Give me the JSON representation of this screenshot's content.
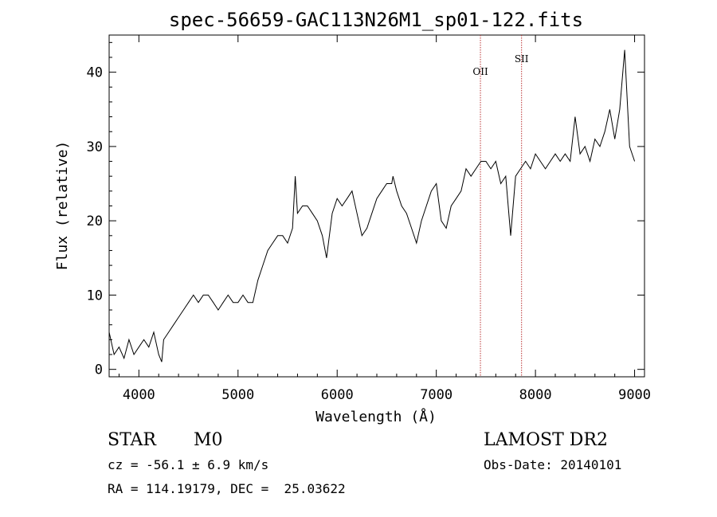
{
  "chart_data": {
    "type": "line",
    "title": "spec-56659-GAC113N26M1_sp01-122.fits",
    "xlabel": "Wavelength (Å)",
    "ylabel": "Flux (relative)",
    "xlim": [
      3700,
      9100
    ],
    "ylim": [
      -1,
      45
    ],
    "xticks": [
      "4000",
      "5000",
      "6000",
      "7000",
      "8000",
      "9000"
    ],
    "yticks": [
      "0",
      "10",
      "20",
      "30",
      "40"
    ],
    "grid": false,
    "series": [
      {
        "x": [
          3700,
          3750,
          3800,
          3850,
          3900,
          3950,
          4000,
          4050,
          4100,
          4150,
          4200,
          4230,
          4250,
          4300,
          4350,
          4400,
          4450,
          4500,
          4550,
          4600,
          4650,
          4700,
          4750,
          4800,
          4850,
          4900,
          4950,
          5000,
          5050,
          5100,
          5150,
          5200,
          5250,
          5300,
          5350,
          5400,
          5450,
          5500,
          5550,
          5577,
          5600,
          5650,
          5700,
          5750,
          5800,
          5850,
          5893,
          5950,
          6000,
          6050,
          6100,
          6150,
          6200,
          6250,
          6300,
          6350,
          6400,
          6450,
          6500,
          6550,
          6563,
          6600,
          6650,
          6700,
          6750,
          6800,
          6850,
          6900,
          6950,
          7000,
          7050,
          7100,
          7150,
          7200,
          7250,
          7300,
          7350,
          7400,
          7450,
          7500,
          7550,
          7600,
          7650,
          7700,
          7750,
          7800,
          7850,
          7900,
          7950,
          8000,
          8050,
          8100,
          8150,
          8200,
          8250,
          8300,
          8350,
          8400,
          8450,
          8500,
          8550,
          8600,
          8650,
          8700,
          8750,
          8800,
          8850,
          8900,
          8950,
          9000
        ],
        "values": [
          5,
          2,
          3,
          1.5,
          4,
          2,
          3,
          4,
          3,
          5,
          2,
          1,
          4,
          5,
          6,
          7,
          8,
          9,
          10,
          9,
          10,
          10,
          9,
          8,
          9,
          10,
          9,
          9,
          10,
          9,
          9,
          12,
          14,
          16,
          17,
          18,
          18,
          17,
          19,
          26,
          21,
          22,
          22,
          21,
          20,
          18,
          15,
          21,
          23,
          22,
          23,
          24,
          21,
          18,
          19,
          21,
          23,
          24,
          25,
          25,
          26,
          24,
          22,
          21,
          19,
          17,
          20,
          22,
          24,
          25,
          20,
          19,
          22,
          23,
          24,
          27,
          26,
          27,
          28,
          28,
          27,
          28,
          25,
          26,
          18,
          26,
          27,
          28,
          27,
          29,
          28,
          27,
          28,
          29,
          28,
          29,
          28,
          34,
          29,
          30,
          28,
          31,
          30,
          32,
          35,
          31,
          35,
          43,
          30,
          28
        ]
      }
    ],
    "markers": [
      {
        "label": "OII",
        "x": 7445
      },
      {
        "label": "SII",
        "x": 7860
      }
    ]
  },
  "info": {
    "object_class": "STAR",
    "subclass": "M0",
    "survey": "LAMOST DR2",
    "cz": "cz = -56.1 ± 6.9 km/s",
    "obs_date": "Obs-Date: 20140101",
    "coords": "RA = 114.19179, DEC =  25.03622"
  }
}
